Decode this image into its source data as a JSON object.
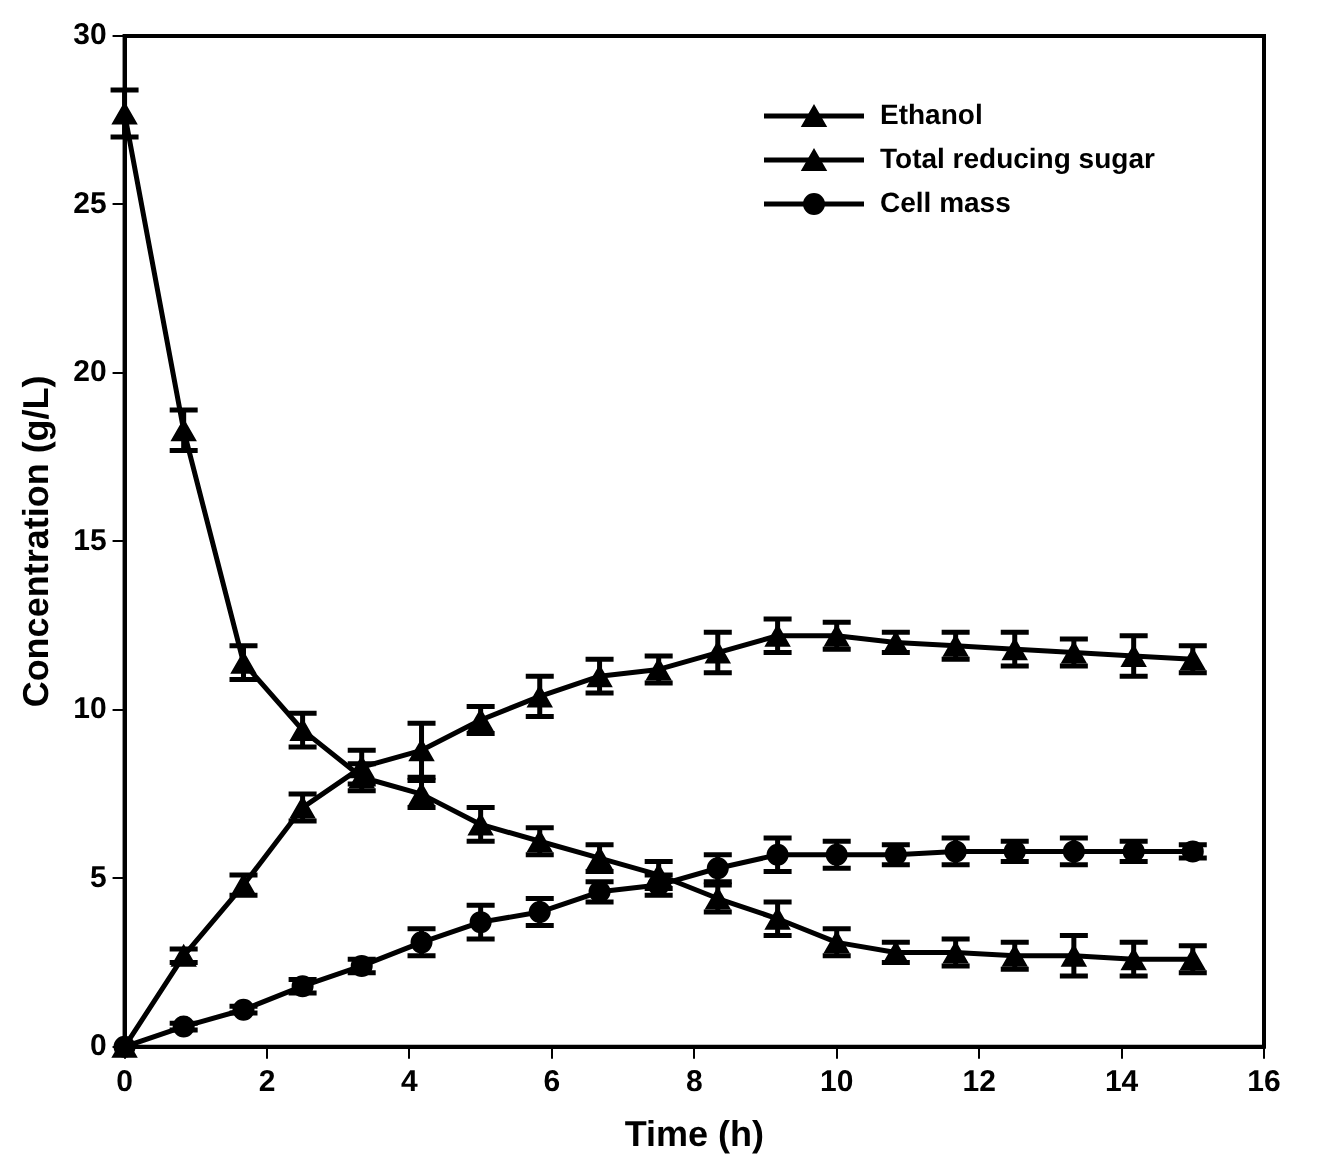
{
  "chart_data": {
    "type": "line",
    "xlabel": "Time (h)",
    "ylabel": "Concentration (g/L)",
    "x": [
      0,
      0.83,
      1.67,
      2.5,
      3.33,
      4.17,
      5,
      5.83,
      6.67,
      7.5,
      8.33,
      9.17,
      10,
      10.83,
      11.67,
      12.5,
      13.33,
      14.17,
      15
    ],
    "xlim": [
      0,
      16
    ],
    "xticks": [
      0,
      2,
      4,
      6,
      8,
      10,
      12,
      14,
      16
    ],
    "ylim": [
      0,
      30
    ],
    "yticks": [
      0,
      5,
      10,
      15,
      20,
      25,
      30
    ],
    "grid": false,
    "legend": "top right",
    "line_style": "solid",
    "series": [
      {
        "name": "Ethanol",
        "color": "#000000",
        "marker": "triangle",
        "values": [
          0,
          2.7,
          4.8,
          7.1,
          8.3,
          8.8,
          9.7,
          10.4,
          11.0,
          11.2,
          11.7,
          12.2,
          12.2,
          12.0,
          11.9,
          11.8,
          11.7,
          11.6,
          11.5
        ],
        "errors": [
          null,
          0.2,
          0.3,
          0.4,
          0.5,
          0.8,
          0.4,
          0.6,
          0.5,
          0.4,
          0.6,
          0.5,
          0.4,
          0.3,
          0.4,
          0.5,
          0.4,
          0.6,
          0.4
        ]
      },
      {
        "name": "Total reducing sugar",
        "color": "#000000",
        "marker": "triangle",
        "values": [
          27.7,
          18.3,
          11.4,
          9.4,
          8.0,
          7.5,
          6.6,
          6.1,
          5.6,
          5.1,
          4.4,
          3.8,
          3.1,
          2.8,
          2.8,
          2.7,
          2.7,
          2.6,
          2.6
        ],
        "errors": [
          0.7,
          0.6,
          0.5,
          0.5,
          0.4,
          0.4,
          0.5,
          0.4,
          0.4,
          0.4,
          0.4,
          0.5,
          0.4,
          0.3,
          0.4,
          0.4,
          0.6,
          0.5,
          0.4
        ]
      },
      {
        "name": "Cell mass",
        "color": "#000000",
        "marker": "circle",
        "values": [
          0,
          0.6,
          1.1,
          1.8,
          2.4,
          3.1,
          3.7,
          4.0,
          4.6,
          4.8,
          5.3,
          5.7,
          5.7,
          5.7,
          5.8,
          5.8,
          5.8,
          5.8,
          5.8
        ],
        "errors": [
          null,
          0.1,
          0.1,
          0.2,
          0.2,
          0.4,
          0.5,
          0.4,
          0.3,
          0.3,
          0.4,
          0.5,
          0.4,
          0.3,
          0.4,
          0.3,
          0.4,
          0.3,
          0.2
        ]
      }
    ]
  }
}
